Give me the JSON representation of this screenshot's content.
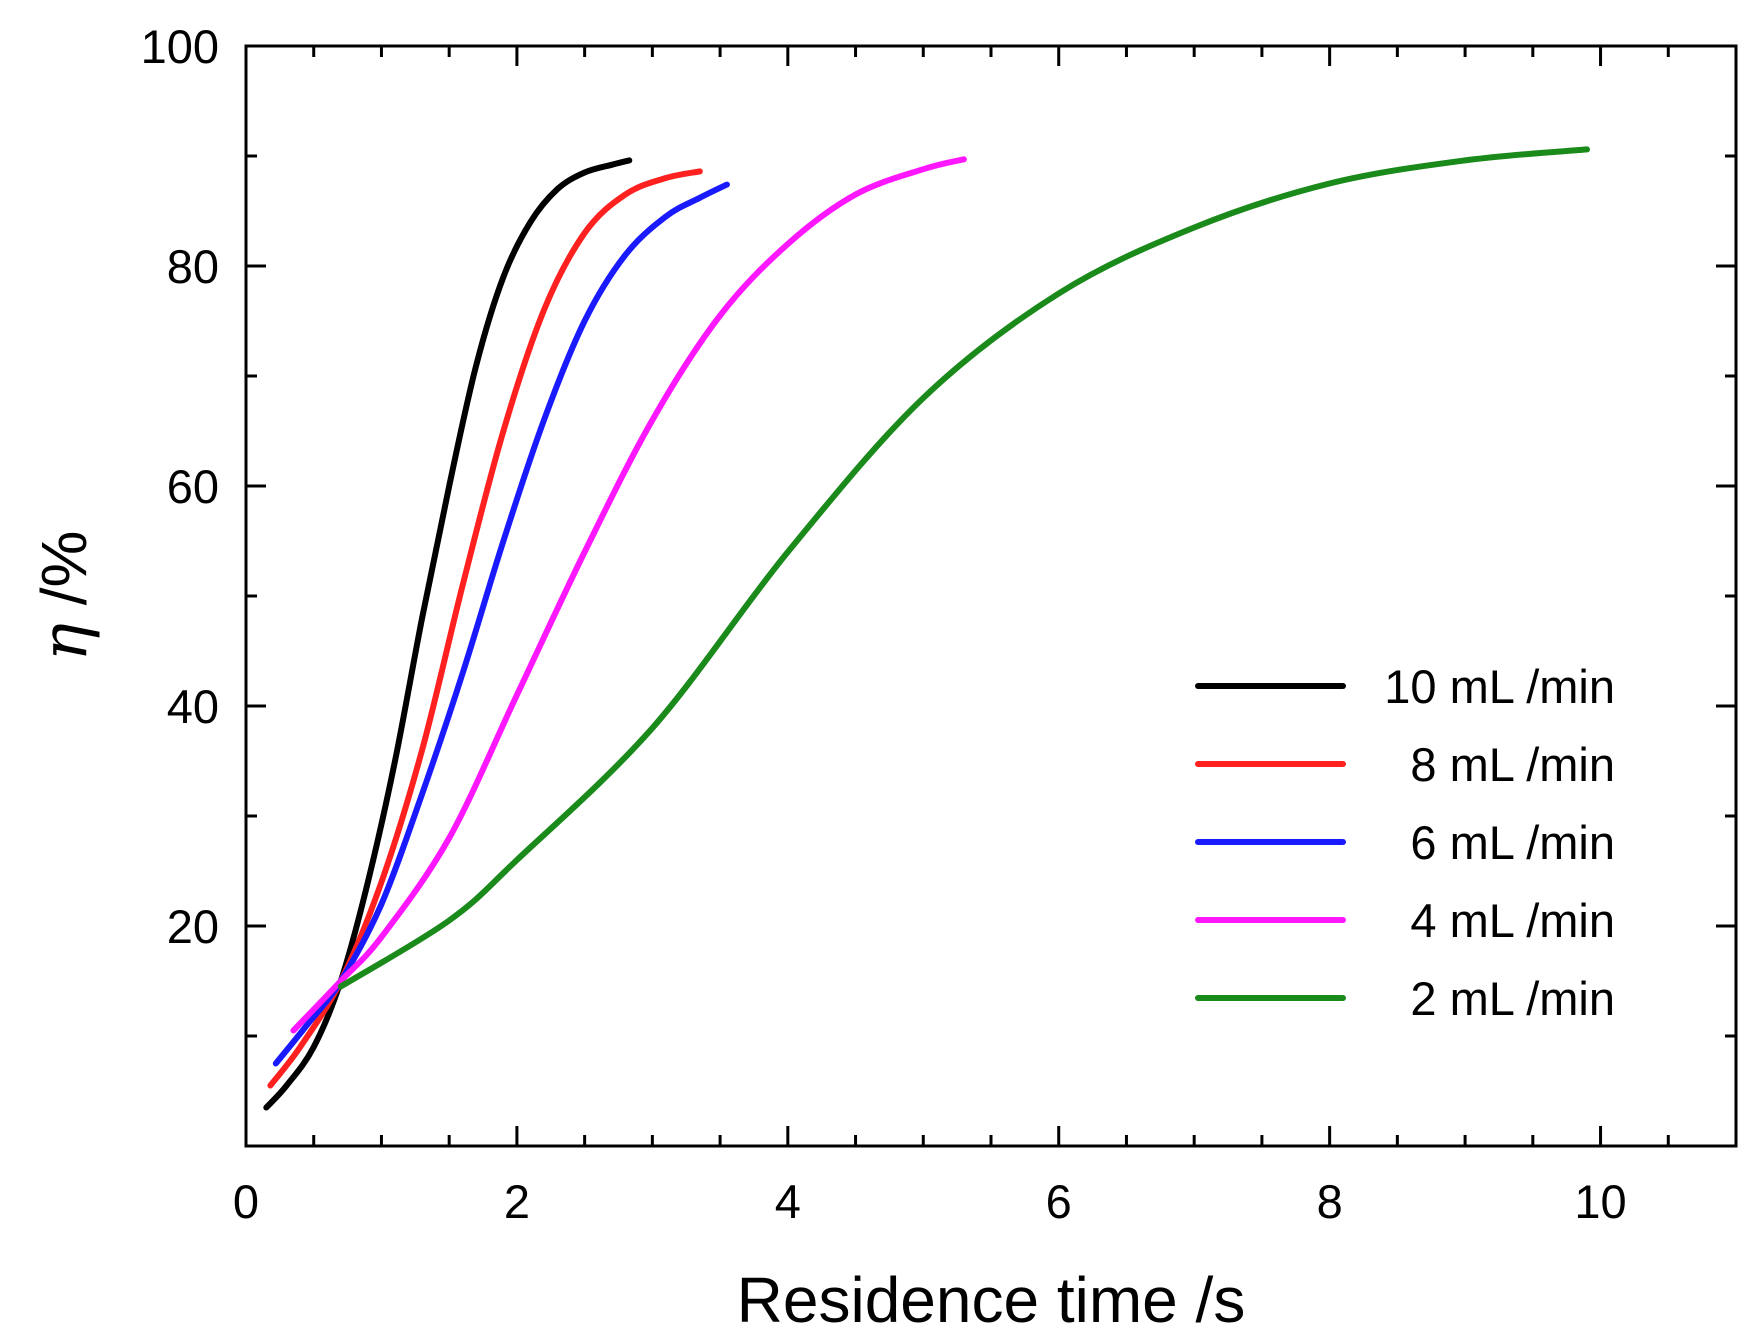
{
  "chart_data": {
    "type": "line",
    "title": "",
    "xlabel": "Residence time /s",
    "ylabel_symbol": "η",
    "ylabel_unit": " /%",
    "xlim": [
      0,
      11
    ],
    "ylim": [
      0,
      100
    ],
    "xticks": [
      0,
      2,
      4,
      6,
      8,
      10
    ],
    "xtick_labels": [
      "0",
      "2",
      "4",
      "6",
      "8",
      "10"
    ],
    "yticks": [
      20,
      40,
      60,
      80,
      100
    ],
    "ytick_labels": [
      "20",
      "40",
      "60",
      "80",
      "100"
    ],
    "grid": false,
    "legend_position": "bottom-right",
    "series": [
      {
        "name": "10 mL /min",
        "color": "#000000",
        "x": [
          0.15,
          0.3,
          0.5,
          0.7,
          0.9,
          1.1,
          1.3,
          1.5,
          1.7,
          1.9,
          2.1,
          2.3,
          2.5,
          2.7,
          2.83
        ],
        "y": [
          3.5,
          5.5,
          9,
          15,
          24,
          35,
          48,
          60,
          71,
          79,
          84,
          87,
          88.5,
          89.2,
          89.6
        ]
      },
      {
        "name": "8 mL /min",
        "color": "#ff2020",
        "x": [
          0.18,
          0.4,
          0.7,
          1.0,
          1.3,
          1.6,
          1.9,
          2.2,
          2.5,
          2.8,
          3.1,
          3.35
        ],
        "y": [
          5.5,
          9,
          15,
          24,
          36,
          51,
          65,
          76,
          83,
          86.5,
          88,
          88.6
        ]
      },
      {
        "name": "6 mL /min",
        "color": "#1a1aff",
        "x": [
          0.22,
          0.45,
          0.7,
          1.0,
          1.3,
          1.6,
          1.9,
          2.2,
          2.5,
          2.8,
          3.1,
          3.35,
          3.55
        ],
        "y": [
          7.5,
          11,
          15,
          22,
          32,
          43,
          55,
          66,
          75,
          81,
          84.5,
          86.2,
          87.4
        ]
      },
      {
        "name": "4 mL /min",
        "color": "#ff18ff",
        "x": [
          0.35,
          0.7,
          1.0,
          1.5,
          2.0,
          2.5,
          3.0,
          3.5,
          4.0,
          4.5,
          5.0,
          5.3
        ],
        "y": [
          10.5,
          15,
          19,
          28,
          41,
          54,
          66,
          75.5,
          82,
          86.5,
          88.8,
          89.7
        ]
      },
      {
        "name": "2 mL /min",
        "color": "#1a8a1a",
        "x": [
          0.7,
          1.5,
          2.0,
          3.0,
          4.0,
          5.0,
          6.0,
          7.0,
          8.0,
          9.0,
          9.9
        ],
        "y": [
          14.5,
          20.5,
          26,
          38,
          54,
          68,
          77.5,
          83.5,
          87.5,
          89.6,
          90.6
        ]
      }
    ]
  }
}
